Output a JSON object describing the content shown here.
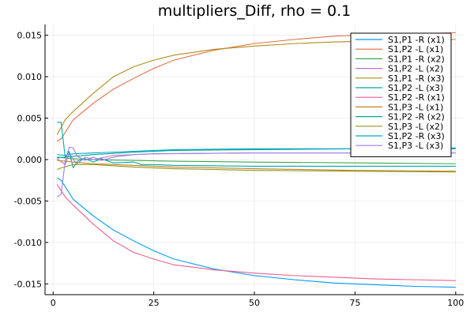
{
  "chart_data": {
    "type": "line",
    "title": "multipliers_Diff, rho = 0.1",
    "xlabel": "",
    "ylabel": "",
    "xlim": [
      -2,
      102
    ],
    "ylim": [
      -0.0163,
      0.0163
    ],
    "xticks": [
      0,
      25,
      50,
      75,
      100
    ],
    "xtick_labels": [
      "0",
      "25",
      "50",
      "75",
      "100"
    ],
    "yticks": [
      -0.015,
      -0.01,
      -0.005,
      0.0,
      0.005,
      0.01,
      0.015
    ],
    "ytick_labels": [
      "-0.015",
      "-0.010",
      "-0.005",
      "0.000",
      "0.005",
      "0.010",
      "0.015"
    ],
    "grid": true,
    "legend_position": "top-right",
    "series": [
      {
        "name": "S1,P1 -R (x1)",
        "color": "#009AFA",
        "points": [
          [
            1,
            -0.0022
          ],
          [
            2,
            -0.0025
          ],
          [
            5,
            -0.0048
          ],
          [
            10,
            -0.0068
          ],
          [
            15,
            -0.0085
          ],
          [
            20,
            -0.0098
          ],
          [
            25,
            -0.011
          ],
          [
            30,
            -0.012
          ],
          [
            40,
            -0.0132
          ],
          [
            50,
            -0.014
          ],
          [
            60,
            -0.0145
          ],
          [
            70,
            -0.0149
          ],
          [
            80,
            -0.0151
          ],
          [
            90,
            -0.0153
          ],
          [
            100,
            -0.0154
          ]
        ]
      },
      {
        "name": "S1,P2 -L (x1)",
        "color": "#E36F47",
        "points": [
          [
            1,
            0.0022
          ],
          [
            2,
            0.0025
          ],
          [
            5,
            0.0048
          ],
          [
            10,
            0.0068
          ],
          [
            15,
            0.0085
          ],
          [
            20,
            0.0098
          ],
          [
            25,
            0.011
          ],
          [
            30,
            0.012
          ],
          [
            40,
            0.0132
          ],
          [
            50,
            0.014
          ],
          [
            60,
            0.0145
          ],
          [
            70,
            0.0149
          ],
          [
            80,
            0.0151
          ],
          [
            90,
            0.0152
          ],
          [
            100,
            0.0153
          ]
        ]
      },
      {
        "name": "S1,P1 -R (x2)",
        "color": "#3EA44E",
        "points": [
          [
            1,
            0.0003
          ],
          [
            3,
            0.0002
          ],
          [
            5,
            0.0001
          ],
          [
            10,
            0.0
          ],
          [
            20,
            -0.0001
          ],
          [
            30,
            -0.0002
          ],
          [
            50,
            -0.0003
          ],
          [
            75,
            -0.0004
          ],
          [
            100,
            -0.0005
          ]
        ]
      },
      {
        "name": "S1,P2 -L (x2)",
        "color": "#C371D2",
        "points": [
          [
            1,
            0.0001
          ],
          [
            3,
            -0.0006
          ],
          [
            4,
            0.0008
          ],
          [
            5,
            0.0
          ],
          [
            6,
            -0.0005
          ],
          [
            8,
            0.0003
          ],
          [
            10,
            0.0
          ],
          [
            12,
            0.0002
          ],
          [
            15,
            0.0005
          ],
          [
            20,
            0.0006
          ],
          [
            25,
            0.0007
          ],
          [
            50,
            0.0008
          ],
          [
            75,
            0.0008
          ],
          [
            100,
            0.0008
          ]
        ]
      },
      {
        "name": "S1,P1 -R (x3)",
        "color": "#AC8D18",
        "points": [
          [
            1,
            0.003
          ],
          [
            3,
            0.0048
          ],
          [
            5,
            0.0058
          ],
          [
            10,
            0.008
          ],
          [
            15,
            0.01
          ],
          [
            20,
            0.0112
          ],
          [
            25,
            0.012
          ],
          [
            30,
            0.0126
          ],
          [
            40,
            0.0133
          ],
          [
            50,
            0.0137
          ],
          [
            60,
            0.014
          ],
          [
            70,
            0.0142
          ],
          [
            80,
            0.0143
          ],
          [
            90,
            0.0144
          ],
          [
            100,
            0.0145
          ]
        ]
      },
      {
        "name": "S1,P2 -L (x3)",
        "color": "#00A9AD",
        "points": [
          [
            1,
            0.0045
          ],
          [
            2,
            0.0045
          ],
          [
            3,
            0.0003
          ],
          [
            4,
            0.001
          ],
          [
            5,
            -0.001
          ],
          [
            6,
            -0.0002
          ],
          [
            8,
            0.0001
          ],
          [
            10,
            -0.0003
          ],
          [
            12,
            0.0001
          ],
          [
            15,
            -0.0004
          ],
          [
            20,
            -0.0003
          ],
          [
            22,
            -0.0006
          ],
          [
            25,
            -0.0006
          ],
          [
            30,
            -0.0007
          ],
          [
            50,
            -0.0008
          ],
          [
            75,
            -0.0008
          ],
          [
            100,
            -0.0008
          ]
        ]
      },
      {
        "name": "S1,P2 -R (x1)",
        "color": "#ED5D92",
        "points": [
          [
            1,
            -0.003
          ],
          [
            3,
            -0.0045
          ],
          [
            5,
            -0.0055
          ],
          [
            10,
            -0.0078
          ],
          [
            15,
            -0.0098
          ],
          [
            20,
            -0.0112
          ],
          [
            25,
            -0.012
          ],
          [
            30,
            -0.0127
          ],
          [
            40,
            -0.0133
          ],
          [
            50,
            -0.0137
          ],
          [
            60,
            -0.014
          ],
          [
            70,
            -0.0142
          ],
          [
            80,
            -0.0144
          ],
          [
            90,
            -0.0145
          ],
          [
            100,
            -0.0146
          ]
        ]
      },
      {
        "name": "S1,P3 -L (x1)",
        "color": "#C68225",
        "points": [
          [
            1,
            -0.0001
          ],
          [
            5,
            -0.0003
          ],
          [
            10,
            -0.0005
          ],
          [
            20,
            -0.0007
          ],
          [
            30,
            -0.0009
          ],
          [
            50,
            -0.0011
          ],
          [
            75,
            -0.0013
          ],
          [
            100,
            -0.0014
          ]
        ]
      },
      {
        "name": "S1,P2 -R (x2)",
        "color": "#00A98D",
        "points": [
          [
            1,
            0.0002
          ],
          [
            5,
            0.0004
          ],
          [
            10,
            0.0006
          ],
          [
            20,
            0.0009
          ],
          [
            30,
            0.0011
          ],
          [
            50,
            0.0012
          ],
          [
            75,
            0.0013
          ],
          [
            100,
            0.0014
          ]
        ]
      },
      {
        "name": "S1,P3 -L (x2)",
        "color": "#8E971D",
        "points": [
          [
            1,
            -0.0012
          ],
          [
            2,
            -0.001
          ],
          [
            5,
            -0.0006
          ],
          [
            10,
            -0.0006
          ],
          [
            20,
            -0.0009
          ],
          [
            30,
            -0.0011
          ],
          [
            50,
            -0.0013
          ],
          [
            75,
            -0.0014
          ],
          [
            100,
            -0.0015
          ]
        ]
      },
      {
        "name": "S1,P2 -R (x3)",
        "color": "#00A8CB",
        "points": [
          [
            1,
            0.0006
          ],
          [
            3,
            0.0005
          ],
          [
            5,
            0.0007
          ],
          [
            10,
            0.0008
          ],
          [
            20,
            0.001
          ],
          [
            30,
            0.0012
          ],
          [
            50,
            0.0013
          ],
          [
            75,
            0.0013
          ],
          [
            100,
            0.0013
          ]
        ]
      },
      {
        "name": "S1,P3 -L (x3)",
        "color": "#9B7FE9",
        "points": [
          [
            1,
            -0.0045
          ],
          [
            2,
            -0.0042
          ],
          [
            3,
            -0.0002
          ],
          [
            4,
            0.0015
          ],
          [
            5,
            0.0014
          ],
          [
            6,
            0.0004
          ],
          [
            8,
            -0.0001
          ],
          [
            10,
            0.0003
          ],
          [
            12,
            -0.0001
          ],
          [
            15,
            0.0003
          ],
          [
            20,
            0.0006
          ],
          [
            25,
            0.0007
          ],
          [
            50,
            0.0008
          ],
          [
            75,
            0.0008
          ],
          [
            100,
            0.0008
          ]
        ]
      }
    ]
  }
}
